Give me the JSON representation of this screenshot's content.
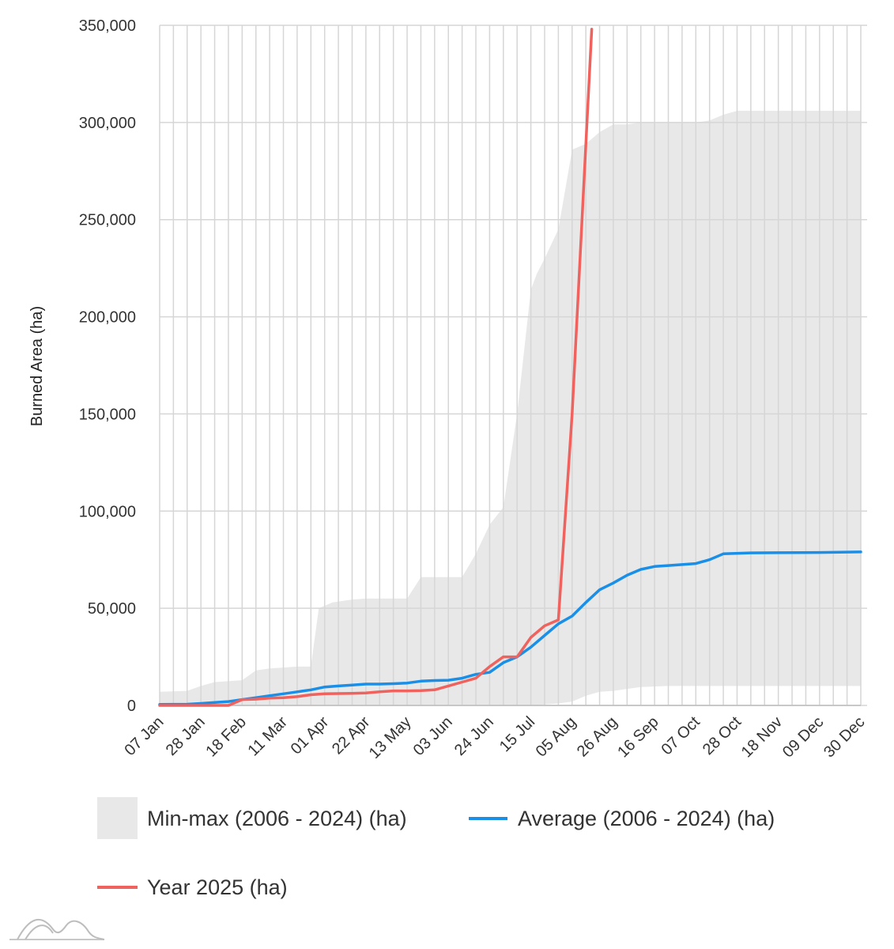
{
  "chart_data": {
    "type": "line",
    "title": "",
    "xlabel": "",
    "ylabel": "Burned Area (ha)",
    "ylim": [
      0,
      350000
    ],
    "yticks": [
      0,
      50000,
      100000,
      150000,
      200000,
      250000,
      300000,
      350000
    ],
    "ytick_labels": [
      "0",
      "50,000",
      "100,000",
      "150,000",
      "200,000",
      "250,000",
      "300,000",
      "350,000"
    ],
    "xlim": [
      "2025-01-07",
      "2025-12-30"
    ],
    "xticks": [
      "2025-01-07",
      "2025-01-28",
      "2025-02-18",
      "2025-03-11",
      "2025-04-01",
      "2025-04-22",
      "2025-05-13",
      "2025-06-03",
      "2025-06-24",
      "2025-07-15",
      "2025-08-05",
      "2025-08-26",
      "2025-09-16",
      "2025-10-07",
      "2025-10-28",
      "2025-11-18",
      "2025-12-09",
      "2025-12-30"
    ],
    "xtick_labels": [
      "07 Jan",
      "28 Jan",
      "18 Feb",
      "11 Mar",
      "01 Apr",
      "22 Apr",
      "13 May",
      "03 Jun",
      "24 Jun",
      "15 Jul",
      "05 Aug",
      "26 Aug",
      "16 Sep",
      "07 Oct",
      "28 Oct",
      "18 Nov",
      "09 Dec",
      "30 Dec"
    ],
    "grid": true,
    "legend_position": "bottom",
    "series": [
      {
        "name": "Min-max (2006 - 2024) (ha)",
        "kind": "band",
        "color": "#e8e8e8",
        "x": [
          "2025-01-07",
          "2025-01-21",
          "2025-01-28",
          "2025-02-04",
          "2025-02-18",
          "2025-02-25",
          "2025-03-04",
          "2025-03-11",
          "2025-03-18",
          "2025-03-25",
          "2025-03-29",
          "2025-04-05",
          "2025-04-15",
          "2025-04-22",
          "2025-05-13",
          "2025-05-20",
          "2025-06-03",
          "2025-06-10",
          "2025-06-17",
          "2025-06-24",
          "2025-07-01",
          "2025-07-08",
          "2025-07-15",
          "2025-07-18",
          "2025-07-22",
          "2025-07-29",
          "2025-08-05",
          "2025-08-12",
          "2025-08-19",
          "2025-08-26",
          "2025-09-02",
          "2025-09-09",
          "2025-09-23",
          "2025-10-07",
          "2025-10-14",
          "2025-10-21",
          "2025-10-28",
          "2025-11-04",
          "2025-11-18",
          "2025-12-09",
          "2025-12-30"
        ],
        "min": [
          0,
          0,
          0,
          0,
          0,
          0,
          0,
          0,
          0,
          0,
          0,
          0,
          0,
          0,
          0,
          0,
          0,
          0,
          0,
          0,
          0,
          0,
          0,
          0,
          500,
          1000,
          2000,
          5000,
          7000,
          7500,
          8500,
          9500,
          10000,
          10000,
          10000,
          10000,
          10000,
          10000,
          10000,
          10000,
          10000
        ],
        "max": [
          7000,
          7500,
          10000,
          12000,
          13000,
          18000,
          19000,
          19500,
          20000,
          20000,
          50000,
          53000,
          54500,
          55000,
          55000,
          66000,
          66000,
          66000,
          78000,
          93000,
          102000,
          150000,
          214000,
          222000,
          230000,
          245000,
          286000,
          289000,
          295000,
          299000,
          299000,
          300000,
          300000,
          300000,
          301000,
          304000,
          306000,
          306000,
          306000,
          306000,
          306000
        ]
      },
      {
        "name": "Average (2006 - 2024) (ha)",
        "kind": "line",
        "color": "#1a8fe8",
        "x": [
          "2025-01-07",
          "2025-01-21",
          "2025-01-28",
          "2025-02-04",
          "2025-02-11",
          "2025-02-18",
          "2025-02-25",
          "2025-03-04",
          "2025-03-11",
          "2025-03-18",
          "2025-03-25",
          "2025-04-01",
          "2025-04-08",
          "2025-04-15",
          "2025-04-22",
          "2025-04-29",
          "2025-05-06",
          "2025-05-13",
          "2025-05-20",
          "2025-05-27",
          "2025-06-03",
          "2025-06-10",
          "2025-06-17",
          "2025-06-24",
          "2025-07-01",
          "2025-07-08",
          "2025-07-15",
          "2025-07-22",
          "2025-07-29",
          "2025-08-05",
          "2025-08-12",
          "2025-08-19",
          "2025-08-26",
          "2025-09-02",
          "2025-09-09",
          "2025-09-16",
          "2025-09-23",
          "2025-09-30",
          "2025-10-07",
          "2025-10-14",
          "2025-10-21",
          "2025-11-04",
          "2025-11-18",
          "2025-12-09",
          "2025-12-30"
        ],
        "values": [
          500,
          600,
          1000,
          1500,
          2000,
          3000,
          4000,
          5000,
          6000,
          7000,
          8000,
          9500,
          10000,
          10500,
          11000,
          11000,
          11200,
          11500,
          12500,
          12800,
          13000,
          14000,
          16000,
          17000,
          22000,
          25000,
          30000,
          36000,
          42000,
          46000,
          53000,
          59500,
          63000,
          67000,
          70000,
          71500,
          72000,
          72500,
          73000,
          75000,
          78000,
          78500,
          78600,
          78700,
          79000
        ]
      },
      {
        "name": "Year 2025 (ha)",
        "kind": "line",
        "color": "#f0625d",
        "x": [
          "2025-01-07",
          "2025-01-28",
          "2025-02-11",
          "2025-02-18",
          "2025-02-25",
          "2025-03-04",
          "2025-03-11",
          "2025-03-18",
          "2025-03-25",
          "2025-04-01",
          "2025-04-15",
          "2025-04-22",
          "2025-04-29",
          "2025-05-06",
          "2025-05-13",
          "2025-05-20",
          "2025-05-27",
          "2025-06-03",
          "2025-06-10",
          "2025-06-17",
          "2025-06-24",
          "2025-07-01",
          "2025-07-08",
          "2025-07-15",
          "2025-07-22",
          "2025-07-29",
          "2025-08-05",
          "2025-08-15"
        ],
        "values": [
          0,
          0,
          0,
          3000,
          3200,
          3800,
          4000,
          4500,
          5500,
          6000,
          6200,
          6400,
          7000,
          7500,
          7500,
          7600,
          8000,
          10000,
          12000,
          14000,
          20000,
          25000,
          25000,
          35000,
          41000,
          44000,
          150000,
          348000
        ]
      }
    ]
  }
}
